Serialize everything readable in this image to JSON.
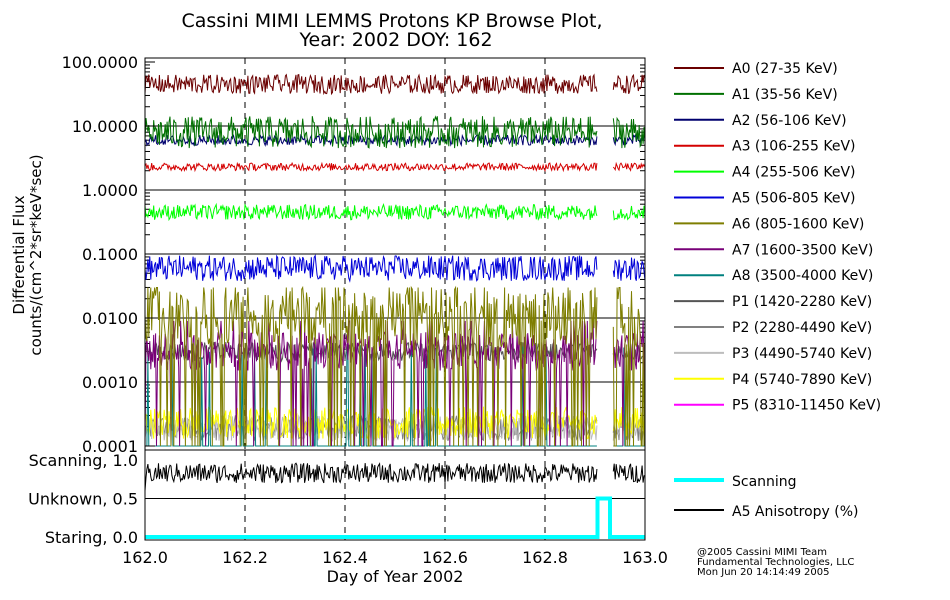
{
  "chart_data": [
    {
      "type": "line",
      "title": "Cassini MIMI LEMMS Protons KP Browse Plot,",
      "subtitle": "Year: 2002 DOY: 162",
      "ylabel_line1": "Differential Flux",
      "ylabel_line2": "counts/(cm^2*sr*keV*sec)",
      "y_scale": "log",
      "ylim": [
        0.0001,
        200
      ],
      "y_ticks": [
        {
          "value": 100,
          "label": "100.0000"
        },
        {
          "value": 10,
          "label": "10.0000"
        },
        {
          "value": 1,
          "label": "1.0000"
        },
        {
          "value": 0.1,
          "label": "0.1000"
        },
        {
          "value": 0.01,
          "label": "0.0100"
        },
        {
          "value": 0.001,
          "label": "0.0010"
        },
        {
          "value": 0.0001,
          "label": "0.0001"
        }
      ],
      "xlim": [
        162.0,
        163.0
      ],
      "data_gap": [
        162.905,
        162.935
      ],
      "grid": "dashed vertical at 0.2 day, solid horizontal at decades",
      "legend_position": "right",
      "series": [
        {
          "name": "A0 (27-35 KeV)",
          "color": "#6b0000",
          "level": 45,
          "spread": 0.15,
          "style": "band"
        },
        {
          "name": "A1 (35-56 KeV)",
          "color": "#007000",
          "level": 8,
          "spread": 0.25,
          "style": "band"
        },
        {
          "name": "A2 (56-106 KeV)",
          "color": "#00006e",
          "level": 6,
          "spread": 0.08,
          "style": "band"
        },
        {
          "name": "A3 (106-255 KeV)",
          "color": "#d40000",
          "level": 2.3,
          "spread": 0.06,
          "style": "band"
        },
        {
          "name": "A4 (255-506 KeV)",
          "color": "#00ff00",
          "level": 0.45,
          "spread": 0.12,
          "style": "band"
        },
        {
          "name": "A5 (506-805 KeV)",
          "color": "#0000d8",
          "level": 0.06,
          "spread": 0.2,
          "style": "band"
        },
        {
          "name": "A6 (805-1600 KeV)",
          "color": "#7e7e00",
          "level": 0.01,
          "spread": 0.45,
          "style": "spiky"
        },
        {
          "name": "A7 (1600-3500 KeV)",
          "color": "#780078",
          "level": 0.003,
          "spread": 0.3,
          "style": "spiky"
        },
        {
          "name": "A8 (3500-4000 KeV)",
          "color": "#00807f",
          "level": 0.003,
          "spread": 0.2,
          "style": "sparse"
        },
        {
          "name": "P1 (1420-2280 KeV)",
          "color": "#555555",
          "level": 0.003,
          "spread": 0.15,
          "style": "band"
        },
        {
          "name": "P2 (2280-4490 KeV)",
          "color": "#808080",
          "level": 0.00012,
          "spread": 0.2,
          "style": "floor"
        },
        {
          "name": "P3 (4490-5740 KeV)",
          "color": "#bdbdbd",
          "level": 0.00012,
          "spread": 0.2,
          "style": "floor"
        },
        {
          "name": "P4 (5740-7890 KeV)",
          "color": "#ffff00",
          "level": 0.00013,
          "spread": 0.25,
          "style": "floor"
        },
        {
          "name": "P5 (8310-11450 KeV)",
          "color": "#ff00ff",
          "level": 0.0001,
          "spread": 0.0,
          "style": "none"
        }
      ]
    },
    {
      "type": "line",
      "xlabel": "Day of Year 2002",
      "ylim": [
        0.0,
        1.0
      ],
      "y_ticks": [
        {
          "value": 1.0,
          "label": "Scanning, 1.0"
        },
        {
          "value": 0.5,
          "label": "Unknown, 0.5"
        },
        {
          "value": 0.0,
          "label": "Staring, 0.0"
        }
      ],
      "xlim": [
        162.0,
        163.0
      ],
      "x_ticks": [
        {
          "value": 162.0,
          "label": "162.0"
        },
        {
          "value": 162.2,
          "label": "162.2"
        },
        {
          "value": 162.4,
          "label": "162.4"
        },
        {
          "value": 162.6,
          "label": "162.6"
        },
        {
          "value": 162.8,
          "label": "162.8"
        },
        {
          "value": 163.0,
          "label": "163.0"
        }
      ],
      "scanning_steps": [
        {
          "x": 162.0,
          "y": 0.0
        },
        {
          "x": 162.905,
          "y": 0.0
        },
        {
          "x": 162.905,
          "y": 0.5
        },
        {
          "x": 162.93,
          "y": 0.5
        },
        {
          "x": 162.93,
          "y": 0.0
        },
        {
          "x": 163.0,
          "y": 0.0
        }
      ],
      "anisotropy_level": 0.83,
      "series": [
        {
          "name": "Scanning",
          "color": "#00ffff"
        },
        {
          "name": "A5 Anisotropy (%)",
          "color": "#000000"
        }
      ]
    }
  ],
  "footer": {
    "line1": "@2005 Cassini MIMI Team",
    "line2": "Fundamental Technologies, LLC",
    "line3": "Mon Jun 20 14:14:49 2005"
  }
}
